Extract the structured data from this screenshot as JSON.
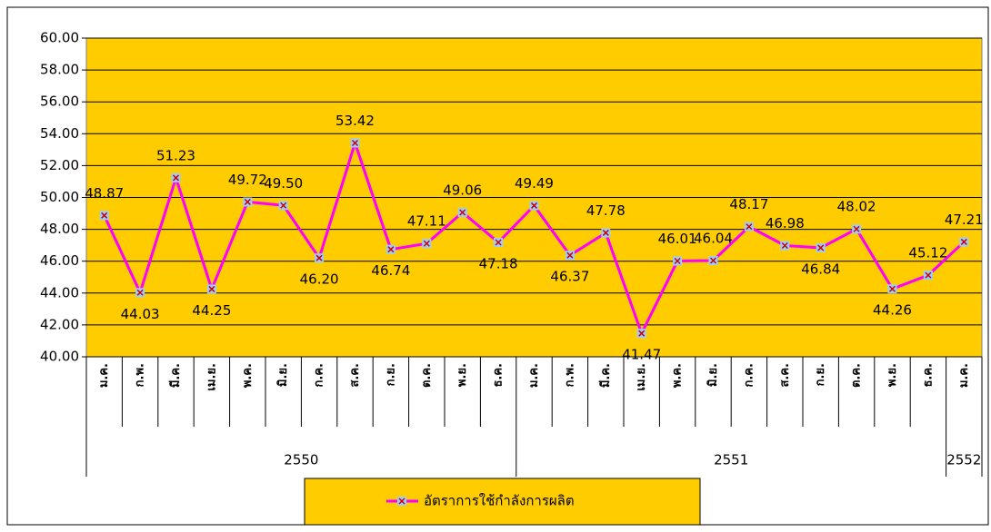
{
  "chart_data": {
    "type": "line",
    "groups": [
      {
        "label": "2550",
        "categories": [
          "ม.ค.",
          "ก.พ.",
          "มี.ค.",
          "เม.ย.",
          "พ.ค.",
          "มิ.ย.",
          "ก.ค.",
          "ส.ค.",
          "ก.ย.",
          "ต.ค.",
          "พ.ย.",
          "ธ.ค."
        ]
      },
      {
        "label": "2551",
        "categories": [
          "ม.ค.",
          "ก.พ.",
          "มี.ค.",
          "เม.ย.",
          "พ.ค.",
          "มิ.ย.",
          "ก.ค.",
          "ส.ค.",
          "ก.ย.",
          "ต.ค.",
          "พ.ย.",
          "ธ.ค."
        ]
      },
      {
        "label": "2552",
        "categories": [
          "ม.ค."
        ]
      }
    ],
    "series": [
      {
        "name": "อัตราการใช้กำลังการผลิต",
        "color": "#ff00ff",
        "values": [
          48.87,
          44.03,
          51.23,
          44.25,
          49.72,
          49.5,
          46.2,
          53.42,
          46.74,
          47.11,
          49.06,
          47.18,
          49.49,
          46.37,
          47.78,
          41.47,
          46.01,
          46.04,
          48.17,
          46.98,
          46.84,
          48.02,
          44.26,
          45.12,
          47.21
        ],
        "value_labels": [
          "48.87",
          "44.03",
          "51.23",
          "44.25",
          "49.72",
          "49.50",
          "46.20",
          "53.42",
          "46.74",
          "47.11",
          "49.06",
          "47.18",
          "49.49",
          "46.37",
          "47.78",
          "41.47",
          "46.01",
          "46.04",
          "48.17",
          "46.98",
          "46.84",
          "48.02",
          "44.26",
          "45.12",
          "47.21"
        ]
      }
    ],
    "ylim": [
      40,
      60
    ],
    "yticks": [
      {
        "value": 40,
        "label": "40.00"
      },
      {
        "value": 42,
        "label": "42.00"
      },
      {
        "value": 44,
        "label": "44.00"
      },
      {
        "value": 46,
        "label": "46.00"
      },
      {
        "value": 48,
        "label": "48.00"
      },
      {
        "value": 50,
        "label": "50.00"
      },
      {
        "value": 52,
        "label": "52.00"
      },
      {
        "value": 54,
        "label": "54.00"
      },
      {
        "value": 56,
        "label": "56.00"
      },
      {
        "value": 58,
        "label": "58.00"
      },
      {
        "value": 60,
        "label": "60.00"
      }
    ],
    "grid": true,
    "plot_background": "#ffcc00",
    "legend": "bottom"
  }
}
